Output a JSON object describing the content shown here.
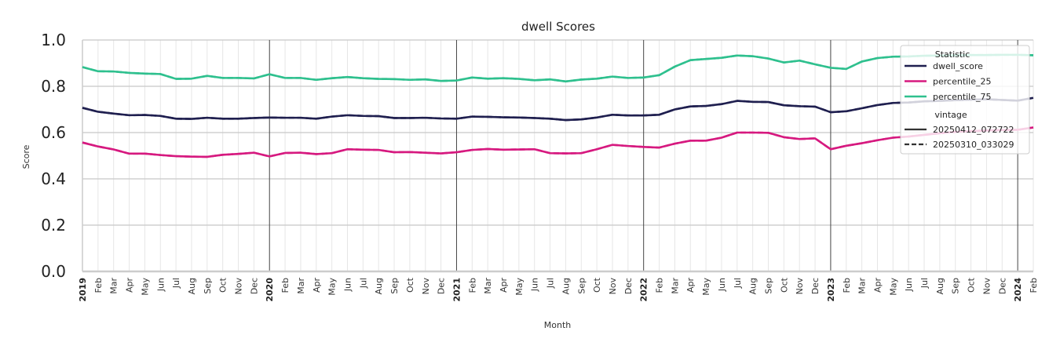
{
  "chart_data": {
    "type": "line",
    "title": "dwell Scores",
    "xlabel": "Month",
    "ylabel": "Score",
    "ylim": [
      0.0,
      1.0
    ],
    "yticks": [
      "0.0",
      "0.2",
      "0.4",
      "0.6",
      "0.8",
      "1.0"
    ],
    "x_start": "2019-01",
    "month_labels": [
      "Feb",
      "Mar",
      "Apr",
      "May",
      "Jun",
      "Jul",
      "Aug",
      "Sep",
      "Oct",
      "Nov",
      "Dec"
    ],
    "year_labels": [
      "2019",
      "2020",
      "2021",
      "2022",
      "2023",
      "2024"
    ],
    "last_label": "Feb",
    "legend": {
      "placement": "top-right",
      "statistic_title": "Statistic",
      "vintage_title": "vintage",
      "vintages": [
        {
          "name": "20250412_072722",
          "dash": "solid"
        },
        {
          "name": "20250310_033029",
          "dash": "dashed"
        }
      ]
    },
    "series": [
      {
        "name": "dwell_score",
        "color": "#1f1f4f",
        "values": [
          0.707,
          0.69,
          0.682,
          0.675,
          0.676,
          0.672,
          0.66,
          0.659,
          0.664,
          0.66,
          0.66,
          0.663,
          0.665,
          0.664,
          0.664,
          0.66,
          0.669,
          0.675,
          0.672,
          0.671,
          0.663,
          0.663,
          0.664,
          0.661,
          0.66,
          0.669,
          0.668,
          0.666,
          0.665,
          0.663,
          0.66,
          0.654,
          0.657,
          0.665,
          0.677,
          0.674,
          0.674,
          0.677,
          0.7,
          0.713,
          0.715,
          0.723,
          0.737,
          0.733,
          0.732,
          0.718,
          0.714,
          0.712,
          0.688,
          0.692,
          0.705,
          0.719,
          0.728,
          0.73,
          0.735,
          0.737,
          0.74,
          0.742,
          0.744,
          0.741,
          0.738,
          0.75
        ]
      },
      {
        "name": "percentile_25",
        "color": "#d6197f",
        "values": [
          0.557,
          0.54,
          0.527,
          0.509,
          0.509,
          0.503,
          0.498,
          0.496,
          0.495,
          0.504,
          0.508,
          0.513,
          0.497,
          0.512,
          0.513,
          0.507,
          0.511,
          0.528,
          0.526,
          0.525,
          0.515,
          0.516,
          0.513,
          0.51,
          0.515,
          0.525,
          0.529,
          0.526,
          0.527,
          0.528,
          0.511,
          0.51,
          0.511,
          0.528,
          0.547,
          0.542,
          0.538,
          0.535,
          0.552,
          0.565,
          0.565,
          0.578,
          0.6,
          0.6,
          0.599,
          0.58,
          0.572,
          0.575,
          0.528,
          0.543,
          0.554,
          0.567,
          0.578,
          0.583,
          0.59,
          0.597,
          0.603,
          0.606,
          0.609,
          0.611,
          0.612,
          0.622
        ]
      },
      {
        "name": "percentile_75",
        "color": "#2fc08e",
        "values": [
          0.883,
          0.865,
          0.864,
          0.858,
          0.855,
          0.853,
          0.832,
          0.833,
          0.845,
          0.836,
          0.836,
          0.834,
          0.852,
          0.836,
          0.836,
          0.828,
          0.835,
          0.84,
          0.835,
          0.832,
          0.831,
          0.828,
          0.83,
          0.823,
          0.825,
          0.838,
          0.833,
          0.835,
          0.832,
          0.826,
          0.83,
          0.821,
          0.829,
          0.833,
          0.842,
          0.836,
          0.838,
          0.848,
          0.885,
          0.913,
          0.918,
          0.923,
          0.933,
          0.93,
          0.92,
          0.903,
          0.911,
          0.895,
          0.88,
          0.875,
          0.907,
          0.922,
          0.928,
          0.929,
          0.932,
          0.933,
          0.934,
          0.935,
          0.935,
          0.936,
          0.936,
          0.934
        ]
      }
    ]
  }
}
